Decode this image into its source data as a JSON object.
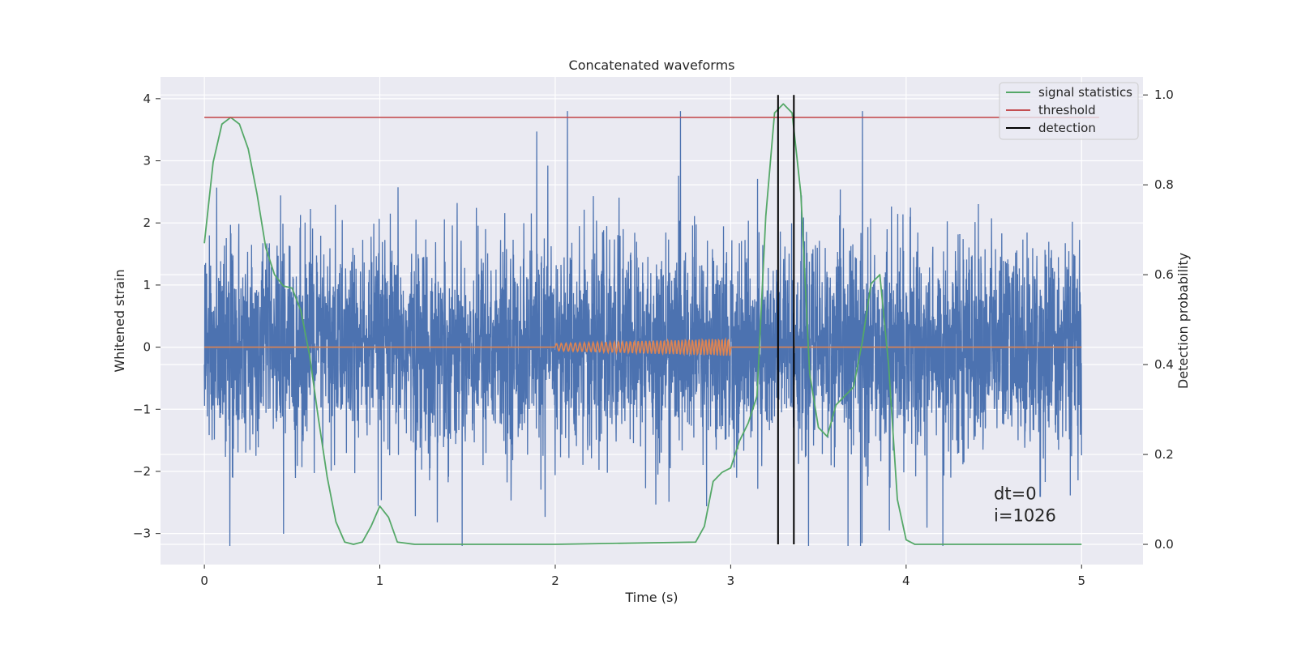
{
  "chart_data": {
    "type": "line",
    "title": "Concatenated waveforms",
    "xlabel": "Time (s)",
    "ylabel_left": "Whitened strain",
    "ylabel_right": "Detection probability",
    "xlim": [
      -0.25,
      5.35
    ],
    "ylim_left": [
      -3.5,
      4.35
    ],
    "ylim_right": [
      -0.045,
      1.04
    ],
    "x_ticks": [
      0,
      1,
      2,
      3,
      4,
      5
    ],
    "x_tick_labels": [
      "0",
      "1",
      "2",
      "3",
      "4",
      "5"
    ],
    "y_left_ticks": [
      4,
      3,
      2,
      1,
      0,
      -1,
      -2,
      -3
    ],
    "y_left_tick_labels": [
      "4",
      "3",
      "2",
      "1",
      "0",
      "−1",
      "−2",
      "−3"
    ],
    "y_right_ticks": [
      1.0,
      0.8,
      0.6,
      0.4,
      0.2,
      0.0
    ],
    "y_right_tick_labels": [
      "1.0",
      "0.8",
      "0.6",
      "0.4",
      "0.2",
      "0.0"
    ],
    "grid": true,
    "legend_placement": "top-right",
    "colors": {
      "strain": "#4c72b0",
      "injected": "#dd8452",
      "signal_statistics": "#55a868",
      "threshold": "#c44e52",
      "detection": "#000000",
      "plot_bg": "#eaeaf2"
    },
    "series": [
      {
        "name": "",
        "axis": "left",
        "kind": "noise",
        "x_range": [
          0,
          5
        ],
        "typical_amplitude": [
          -2.4,
          2.8
        ],
        "extreme_values": [
          3.8,
          -3.2
        ]
      },
      {
        "name": "",
        "axis": "left",
        "kind": "chirp",
        "x": [
          0,
          2,
          3,
          5
        ],
        "y": [
          0,
          0,
          0,
          0
        ],
        "chirp_start": 2.0,
        "chirp_end": 3.0,
        "amplitude_start": 0.06,
        "amplitude_end": 0.14
      },
      {
        "name": "signal statistics",
        "axis": "right",
        "x": [
          0,
          0.05,
          0.1,
          0.15,
          0.2,
          0.25,
          0.3,
          0.35,
          0.4,
          0.45,
          0.5,
          0.55,
          0.6,
          0.65,
          0.7,
          0.75,
          0.8,
          0.85,
          0.9,
          0.95,
          1.0,
          1.05,
          1.1,
          1.2,
          2.0,
          2.8,
          2.85,
          2.9,
          2.95,
          3.0,
          3.05,
          3.1,
          3.15,
          3.2,
          3.25,
          3.3,
          3.35,
          3.4,
          3.45,
          3.5,
          3.55,
          3.6,
          3.65,
          3.7,
          3.75,
          3.8,
          3.85,
          3.9,
          3.95,
          4.0,
          4.05,
          4.1,
          4.5,
          5.0
        ],
        "y": [
          0.67,
          0.85,
          0.935,
          0.95,
          0.935,
          0.88,
          0.78,
          0.66,
          0.6,
          0.575,
          0.57,
          0.52,
          0.42,
          0.28,
          0.15,
          0.05,
          0.005,
          0.0,
          0.005,
          0.04,
          0.085,
          0.06,
          0.005,
          0.0,
          0.0,
          0.005,
          0.04,
          0.14,
          0.16,
          0.17,
          0.23,
          0.27,
          0.33,
          0.73,
          0.96,
          0.98,
          0.96,
          0.78,
          0.38,
          0.26,
          0.24,
          0.31,
          0.33,
          0.35,
          0.45,
          0.58,
          0.6,
          0.4,
          0.1,
          0.01,
          0.0,
          0.0,
          0.0,
          0.0
        ]
      },
      {
        "name": "threshold",
        "axis": "right",
        "x": [
          0,
          5.1
        ],
        "y": [
          0.95,
          0.95
        ]
      },
      {
        "name": "detection",
        "axis": "right",
        "kind": "vertical_lines",
        "x": [
          3.27,
          3.36
        ],
        "y_range": [
          0.0,
          1.0
        ]
      }
    ],
    "annotations": {
      "dt": "dt=0",
      "i": "i=1026"
    }
  }
}
